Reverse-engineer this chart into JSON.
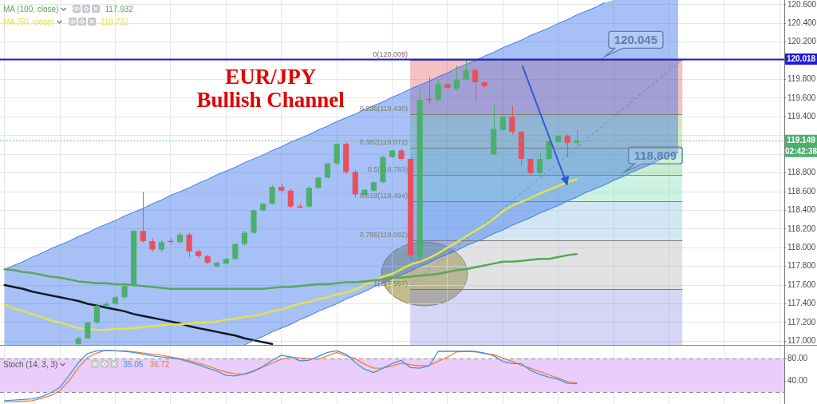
{
  "chart_data": [
    {
      "type": "candlestick",
      "title": "EUR/JPY",
      "subtitle": "Bullish Channel",
      "categories": [
        null,
        null,
        null,
        null,
        null,
        null,
        null,
        null,
        null,
        null,
        null,
        null,
        null,
        null,
        null,
        null,
        null,
        null,
        null,
        null,
        null,
        null,
        null,
        null,
        null,
        null,
        null,
        null,
        null,
        null,
        null,
        null,
        null,
        null,
        null,
        null,
        null,
        null,
        null,
        null,
        null,
        null,
        null,
        null,
        null,
        null,
        null,
        null,
        null,
        null,
        null,
        null,
        null,
        null,
        null,
        null,
        null,
        null,
        null,
        null,
        null,
        null,
        null,
        null,
        null,
        null,
        null,
        null,
        null,
        null,
        null,
        null,
        null,
        null,
        null,
        null,
        null,
        null,
        null,
        null,
        null,
        null,
        null,
        null,
        null
      ],
      "ohlc": [
        null,
        null,
        null,
        null,
        null,
        null,
        null,
        null,
        [
          116.97,
          117.05,
          116.96,
          117.03
        ],
        [
          117.03,
          117.21,
          117.02,
          117.2
        ],
        [
          117.2,
          117.39,
          117.18,
          117.38
        ],
        [
          117.38,
          117.42,
          117.36,
          117.4
        ],
        [
          117.4,
          117.48,
          117.39,
          117.47
        ],
        [
          117.47,
          117.6,
          117.45,
          117.59
        ],
        [
          117.59,
          118.19,
          117.58,
          118.18
        ],
        [
          118.18,
          118.6,
          118.05,
          118.07
        ],
        [
          118.07,
          118.1,
          117.96,
          117.98
        ],
        [
          117.98,
          118.08,
          117.95,
          118.06
        ],
        [
          118.07,
          118.1,
          118.04,
          118.06
        ],
        [
          118.06,
          118.16,
          118.04,
          118.14
        ],
        [
          118.14,
          118.16,
          117.9,
          117.96
        ],
        [
          117.96,
          117.98,
          117.89,
          117.91
        ],
        [
          117.91,
          117.93,
          117.82,
          117.84
        ],
        [
          117.8,
          117.85,
          117.79,
          117.84
        ],
        [
          117.83,
          117.89,
          117.82,
          117.88
        ],
        [
          117.88,
          118.05,
          117.87,
          118.04
        ],
        [
          118.04,
          118.18,
          118.02,
          118.16
        ],
        [
          118.16,
          118.41,
          118.15,
          118.4
        ],
        [
          118.4,
          118.48,
          118.39,
          118.47
        ],
        [
          118.47,
          118.67,
          118.46,
          118.65
        ],
        [
          118.65,
          118.69,
          118.59,
          118.61
        ],
        [
          118.61,
          118.63,
          118.42,
          118.44
        ],
        [
          118.44,
          118.47,
          118.42,
          118.43
        ],
        [
          118.44,
          118.66,
          118.43,
          118.64
        ],
        [
          118.64,
          118.76,
          118.63,
          118.75
        ],
        [
          118.75,
          118.91,
          118.74,
          118.9
        ],
        [
          118.9,
          119.12,
          118.89,
          119.11
        ],
        [
          119.11,
          119.13,
          118.79,
          118.81
        ],
        [
          118.81,
          118.83,
          118.54,
          118.57
        ],
        [
          118.56,
          118.63,
          118.55,
          118.62
        ],
        [
          118.61,
          118.71,
          118.6,
          118.7
        ],
        [
          118.7,
          118.98,
          118.69,
          118.97
        ],
        [
          118.97,
          119.05,
          118.96,
          119.04
        ],
        [
          119.04,
          119.06,
          118.93,
          118.95
        ],
        [
          118.95,
          118.97,
          117.86,
          117.92
        ],
        [
          117.9,
          119.7,
          117.85,
          119.58
        ],
        [
          119.59,
          119.82,
          119.54,
          119.58
        ],
        [
          119.58,
          119.8,
          119.57,
          119.75
        ],
        [
          119.75,
          119.76,
          119.7,
          119.71
        ],
        [
          119.7,
          119.95,
          119.68,
          119.8
        ],
        [
          119.8,
          120.01,
          119.79,
          119.9
        ],
        [
          119.9,
          119.92,
          119.57,
          119.77
        ],
        [
          119.77,
          119.78,
          119.7,
          119.73
        ],
        [
          119.0,
          119.52,
          118.99,
          119.27
        ],
        [
          119.26,
          119.44,
          119.25,
          119.4
        ],
        [
          119.4,
          119.52,
          119.21,
          119.24
        ],
        [
          119.24,
          119.25,
          118.88,
          118.95
        ],
        [
          118.95,
          118.96,
          118.77,
          118.8
        ],
        [
          118.8,
          119.01,
          118.77,
          118.95
        ],
        [
          118.95,
          119.15,
          118.93,
          119.14
        ],
        [
          119.13,
          119.2,
          119.12,
          119.2
        ],
        [
          119.2,
          119.21,
          118.97,
          119.12
        ],
        [
          119.12,
          119.26,
          119.1,
          119.149
        ],
        null,
        null,
        null,
        null,
        null,
        null,
        null,
        null,
        null,
        null,
        null,
        null,
        null,
        null,
        null,
        null,
        null,
        null,
        null,
        null,
        null,
        null
      ],
      "colors": [
        null,
        null,
        null,
        null,
        null,
        null,
        null,
        null,
        "#4caf6e",
        "#4caf6e",
        "#4caf6e",
        "#4caf6e",
        "#4caf6e",
        "#4caf6e",
        "#4caf6e",
        "#e8505e",
        "#e8505e",
        "#4caf6e",
        "#e8505e",
        "#4caf6e",
        "#e8505e",
        "#e8505e",
        "#e8505e",
        "#4caf6e",
        "#4caf6e",
        "#4caf6e",
        "#4caf6e",
        "#4caf6e",
        "#4caf6e",
        "#4caf6e",
        "#e8505e",
        "#e8505e",
        "#e8505e",
        "#4caf6e",
        "#4caf6e",
        "#4caf6e",
        "#4caf6e",
        "#e8505e",
        "#e8505e",
        "#4caf6e",
        "#4caf6e",
        "#4caf6e",
        "#4caf6e",
        "#e8505e",
        "#e8505e",
        "#4caf6e",
        "#e8505e",
        "#4caf6e",
        "#e8505e",
        "#4caf6e",
        "#4caf6e",
        "#e8505e",
        "#e8505e",
        "#4caf6e",
        "#4caf6e",
        "#e8505e",
        "#e8505e",
        "#e8505e",
        "#4caf6e",
        "#4caf6e",
        "#4caf6e",
        "#e8505e",
        "#4caf6e",
        null,
        null,
        null,
        null,
        null,
        null,
        null,
        null,
        null,
        null,
        null,
        null,
        null,
        null,
        null,
        null,
        null,
        null,
        null,
        null,
        null,
        null
      ],
      "series": [
        {
          "name": "MA (100, close)",
          "type": "line",
          "color": "#5aa65a",
          "values": [
            117.77,
            117.76,
            117.74,
            117.73,
            117.71,
            117.69,
            117.68,
            117.66,
            117.64,
            117.63,
            117.62,
            117.62,
            117.61,
            117.61,
            117.6,
            117.59,
            117.58,
            117.57,
            117.56,
            117.56,
            117.56,
            117.56,
            117.56,
            117.56,
            117.56,
            117.56,
            117.56,
            117.56,
            117.56,
            117.57,
            117.58,
            117.58,
            117.59,
            117.6,
            117.61,
            117.61,
            117.62,
            117.63,
            117.63,
            117.64,
            117.65,
            117.66,
            117.68,
            117.68,
            117.69,
            117.7,
            117.71,
            117.72,
            117.74,
            117.76,
            117.77,
            117.79,
            117.81,
            117.83,
            117.85,
            117.85,
            117.86,
            117.87,
            117.88,
            117.88,
            117.9,
            117.92,
            117.932,
            null,
            null,
            null,
            null,
            null,
            null,
            null,
            null,
            null,
            null,
            null,
            null,
            null,
            null,
            null,
            null,
            null,
            null,
            null,
            null,
            null,
            null
          ]
        },
        {
          "name": "MA (50, close)",
          "type": "line",
          "color": "#e3e34a",
          "values": [
            117.39,
            117.35,
            117.32,
            117.29,
            117.26,
            117.22,
            117.2,
            117.17,
            117.14,
            117.13,
            117.12,
            117.12,
            117.13,
            117.13,
            117.14,
            117.15,
            117.16,
            117.17,
            117.18,
            117.18,
            117.19,
            117.2,
            117.2,
            117.21,
            117.23,
            117.24,
            117.26,
            117.27,
            117.29,
            117.32,
            117.34,
            117.37,
            117.4,
            117.42,
            117.45,
            117.47,
            117.5,
            117.52,
            117.55,
            117.6,
            117.64,
            117.69,
            117.72,
            117.77,
            117.82,
            117.85,
            117.89,
            117.94,
            118.0,
            118.06,
            118.12,
            118.18,
            118.24,
            118.31,
            118.39,
            118.45,
            118.49,
            118.53,
            118.58,
            118.62,
            118.66,
            118.7,
            118.732,
            null,
            null,
            null,
            null,
            null,
            null,
            null,
            null,
            null,
            null,
            null,
            null,
            null,
            null,
            null,
            null,
            null,
            null,
            null,
            null,
            null,
            null
          ]
        },
        {
          "type": "line",
          "color": "#3c76eb",
          "values": [
            117.77,
            117.81,
            117.85,
            117.9,
            117.94,
            117.99,
            118.03,
            118.07,
            118.12,
            118.16,
            118.21,
            118.25,
            118.29,
            118.34,
            118.38,
            118.42,
            118.47,
            118.51,
            118.56,
            118.6,
            118.64,
            118.69,
            118.73,
            118.78,
            118.82,
            118.86,
            118.91,
            118.95,
            118.99,
            119.04,
            119.08,
            119.13,
            119.17,
            119.21,
            119.26,
            119.3,
            119.35,
            119.39,
            119.43,
            119.48,
            119.52,
            119.56,
            119.61,
            119.65,
            119.7,
            119.74,
            119.78,
            119.83,
            119.87,
            119.92,
            119.96,
            120.0,
            120.05,
            120.09,
            120.14,
            120.18,
            120.22,
            120.27,
            120.31,
            120.35,
            120.4,
            120.44,
            120.49,
            120.53,
            120.57,
            120.62,
            null,
            null,
            null,
            null,
            null,
            null,
            null,
            null,
            null,
            null,
            null,
            null,
            null,
            null,
            null,
            null,
            null,
            null,
            null
          ],
          "upper": [
            117.77,
            117.81,
            117.85,
            117.9,
            117.94,
            117.99,
            118.03,
            118.07,
            118.12,
            118.16,
            118.21,
            118.25,
            118.29,
            118.34,
            118.38,
            118.42,
            118.47,
            118.51,
            118.56,
            118.6,
            118.64,
            118.69,
            118.73,
            118.78,
            118.82,
            118.86,
            118.91,
            118.95,
            118.99,
            119.04,
            119.08,
            119.13,
            119.17,
            119.21,
            119.26,
            119.3,
            119.35,
            119.39,
            119.43,
            119.48,
            119.52,
            119.56,
            119.61,
            119.65,
            119.7,
            119.74,
            119.78,
            119.83,
            119.87,
            119.92,
            119.96,
            120.0,
            120.05,
            120.09,
            120.14,
            120.18,
            120.22,
            120.27,
            120.31,
            120.35,
            120.4,
            120.44,
            120.49,
            120.53,
            120.57,
            120.62,
            120.65,
            120.65,
            120.65,
            120.65,
            120.65,
            120.65,
            120.65,
            120.65,
            null,
            null,
            null,
            null,
            null,
            null,
            null,
            null,
            null,
            null,
            null
          ],
          "lower": [
            116.96,
            116.96,
            116.96,
            116.96,
            116.96,
            116.96,
            116.96,
            116.96,
            116.96,
            116.96,
            116.96,
            116.96,
            116.96,
            116.96,
            116.96,
            116.96,
            116.96,
            116.96,
            116.96,
            116.96,
            116.96,
            116.96,
            116.96,
            116.96,
            116.96,
            116.96,
            116.96,
            117.01,
            117.05,
            117.1,
            117.14,
            117.18,
            117.23,
            117.27,
            117.32,
            117.36,
            117.4,
            117.45,
            117.49,
            117.53,
            117.58,
            117.62,
            117.67,
            117.71,
            117.75,
            117.8,
            117.84,
            117.89,
            117.93,
            117.97,
            118.02,
            118.06,
            118.1,
            118.15,
            118.19,
            118.24,
            118.28,
            118.32,
            118.37,
            118.41,
            118.45,
            118.5,
            118.54,
            118.59,
            118.63,
            118.67,
            118.72,
            118.76,
            118.81,
            118.85,
            118.89,
            118.94,
            118.98,
            119.02,
            null,
            null,
            null,
            null,
            null,
            null,
            null,
            null,
            null,
            null,
            null
          ]
        },
        {
          "type": "line",
          "color": "#3c76eb",
          "values": [
            null,
            null,
            null,
            null,
            null,
            null,
            null,
            null,
            null,
            null,
            null,
            null,
            null,
            null,
            null,
            null,
            null,
            null,
            null,
            null,
            null,
            null,
            null,
            null,
            null,
            null,
            116.96,
            117.01,
            117.05,
            117.1,
            117.14,
            117.18,
            117.23,
            117.27,
            117.32,
            117.36,
            117.4,
            117.45,
            117.49,
            117.53,
            117.58,
            117.62,
            117.67,
            117.71,
            117.75,
            117.8,
            117.84,
            117.89,
            117.93,
            117.97,
            118.02,
            118.06,
            118.1,
            118.15,
            118.19,
            118.24,
            118.28,
            118.32,
            118.37,
            118.41,
            118.45,
            118.5,
            118.54,
            118.59,
            118.63,
            118.67,
            118.72,
            118.76,
            118.81,
            118.85,
            118.89,
            118.94,
            118.98,
            119.02,
            null,
            null,
            null,
            null,
            null,
            null,
            null,
            null,
            null,
            null,
            null
          ]
        },
        {
          "type": "line",
          "color": "#131722",
          "values": [
            117.6,
            117.58,
            117.56,
            117.53,
            117.51,
            117.49,
            117.47,
            117.45,
            117.43,
            117.4,
            117.38,
            117.36,
            117.34,
            117.32,
            117.29,
            117.27,
            117.25,
            117.23,
            117.21,
            117.19,
            117.16,
            117.14,
            117.12,
            117.1,
            117.08,
            117.06,
            117.03,
            117.01,
            116.99,
            116.97,
            null,
            null,
            null,
            null,
            null,
            null,
            null,
            null,
            null,
            null,
            null,
            null,
            null,
            null,
            null,
            null,
            null,
            null,
            null,
            null,
            null,
            null,
            null,
            null,
            null,
            null,
            null,
            null,
            null,
            null,
            null,
            null,
            null,
            null,
            null,
            null,
            null,
            null,
            null,
            null,
            null,
            null,
            null,
            null,
            null,
            null,
            null,
            null,
            null,
            null,
            null,
            null,
            null,
            null,
            null
          ]
        }
      ],
      "ylim": [
        116.96,
        120.65
      ],
      "yticks": [
        {
          "value": 117,
          "label": "117.000"
        },
        {
          "value": 117.2,
          "label": "117.200"
        },
        {
          "value": 117.4,
          "label": "117.400"
        },
        {
          "value": 117.6,
          "label": "117.600"
        },
        {
          "value": 117.8,
          "label": "117.800"
        },
        {
          "value": 118,
          "label": "118.000"
        },
        {
          "value": 118.2,
          "label": "118.200"
        },
        {
          "value": 118.4,
          "label": "118.400"
        },
        {
          "value": 118.6,
          "label": "118.600"
        },
        {
          "value": 118.8,
          "label": "118.800"
        },
        {
          "value": 119,
          "label": null
        },
        {
          "value": 119.2,
          "label": null
        },
        {
          "value": 119.4,
          "label": "119.400"
        },
        {
          "value": 119.6,
          "label": "119.600"
        },
        {
          "value": 119.8,
          "label": "119.800"
        },
        {
          "value": 120,
          "label": null
        },
        {
          "value": 120.2,
          "label": "120.200"
        },
        {
          "value": 120.4,
          "label": "120.400"
        },
        {
          "value": 120.6,
          "label": "120.600"
        }
      ],
      "grid": true,
      "legend": "top left",
      "tick_labels": "y",
      "ref_lines": [
        {
          "axis": "y",
          "value": 120.018,
          "label": "120.018",
          "color": "#1c1cdc"
        },
        {
          "axis": "y",
          "value": 119.149,
          "label": "119.149\n02:42:38",
          "color": "#4caf6e",
          "line_style": "dotted"
        }
      ],
      "bands": [
        {
          "axis": "y",
          "from": 120.009,
          "to": 119.43,
          "label": "0(120.009)",
          "color": "#f4c2c2"
        },
        {
          "axis": "y",
          "from": 119.43,
          "to": 119.072,
          "label": "0.236(119.430)",
          "color": "#d9e8c4"
        },
        {
          "axis": "y",
          "from": 119.072,
          "to": 118.783,
          "label": "0.382(119.072)",
          "color": "#cbeccf"
        },
        {
          "axis": "y",
          "from": 118.783,
          "to": 118.494,
          "label": "0.5(118.783)",
          "color": "#cdf2e1"
        },
        {
          "axis": "y",
          "from": 118.494,
          "to": 118.082,
          "label": "0.618(118.494)",
          "color": "#d3e7f3"
        },
        {
          "axis": "y",
          "from": 118.082,
          "to": 117.557,
          "label": "0.786(118.082)",
          "color": "#e2e2e4"
        },
        {
          "axis": "y",
          "from": 117.557,
          "to": 116.96,
          "label": "1(117.557)",
          "color": "#d5d5f6"
        }
      ],
      "annotations": [
        "117.932",
        "118.732",
        {
          "text": "120.045",
          "y": 120.045
        },
        {
          "text": "118.809",
          "y": 118.809
        }
      ]
    },
    {
      "type": "line",
      "title": "Stoch (14, 3, 3)",
      "categories": [
        null,
        null,
        null,
        null,
        null,
        null,
        null,
        null,
        null,
        null,
        null,
        null,
        null,
        null,
        null,
        null,
        null,
        null,
        null,
        null,
        null,
        null,
        null,
        null,
        null,
        null,
        null,
        null,
        null,
        null,
        null,
        null,
        null,
        null,
        null,
        null,
        null,
        null,
        null,
        null,
        null,
        null,
        null,
        null,
        null,
        null,
        null,
        null,
        null,
        null,
        null,
        null,
        null,
        null,
        null,
        null,
        null,
        null,
        null,
        null,
        null,
        null,
        null,
        null,
        null,
        null,
        null,
        null,
        null,
        null,
        null,
        null,
        null,
        null,
        null,
        null,
        null,
        null,
        null,
        null,
        null,
        null,
        null,
        null,
        null
      ],
      "series": [
        {
          "type": "line",
          "color": "#3f94e0",
          "values": [
            5,
            6,
            7,
            8,
            12,
            19,
            29,
            50,
            73,
            89,
            94,
            95,
            94,
            93,
            91,
            88,
            85,
            83,
            81,
            79,
            74,
            69,
            63,
            58,
            50,
            49,
            53,
            58,
            66,
            77,
            86,
            83,
            76,
            77,
            84,
            91,
            94,
            88,
            73,
            61,
            55,
            63,
            71,
            77,
            64,
            63,
            67,
            93,
            93,
            93,
            93,
            93,
            90,
            85,
            75,
            71,
            71,
            59,
            52,
            47,
            43,
            36,
            35.05,
            null,
            null,
            null,
            null,
            null,
            null,
            null,
            null,
            null,
            null,
            null,
            null,
            null,
            null,
            null,
            null,
            null,
            null,
            null,
            null,
            null,
            null
          ]
        },
        {
          "type": "line",
          "color": "#f57c3c",
          "values": [
            3,
            3,
            4,
            5,
            9,
            14,
            23,
            41,
            64,
            82,
            90,
            95,
            94,
            94,
            92,
            90,
            88,
            86,
            83,
            80,
            76,
            72,
            67,
            61,
            56,
            53,
            52,
            57,
            65,
            72,
            79,
            83,
            81,
            80,
            79,
            85,
            91,
            85,
            80,
            70,
            63,
            63,
            67,
            72,
            69,
            67,
            68,
            75,
            83,
            92,
            93,
            92,
            89,
            87,
            81,
            75,
            68,
            63,
            57,
            51,
            45,
            39,
            36.72,
            null,
            null,
            null,
            null,
            null,
            null,
            null,
            null,
            null,
            null,
            null,
            null,
            null,
            null,
            null,
            null,
            null,
            null,
            null,
            null,
            null,
            null
          ]
        }
      ],
      "ylim": [
        -1,
        103
      ],
      "yticks": [
        {
          "value": 80,
          "label": "80.00"
        },
        {
          "value": 40,
          "label": "40.00"
        }
      ],
      "grid": "x",
      "tick_labels": "y",
      "ref_lines": [
        {
          "axis": "y",
          "value": 80,
          "color": "#8c8c8c",
          "line_style": "dashed"
        },
        {
          "axis": "y",
          "value": 20,
          "color": "#8c8c8c",
          "line_style": "dashed"
        }
      ],
      "bands": [
        {
          "axis": "y",
          "from": 20,
          "to": 80,
          "color": "#e9cdfa"
        }
      ],
      "annotations": [
        "35.05",
        "36.72"
      ]
    }
  ]
}
